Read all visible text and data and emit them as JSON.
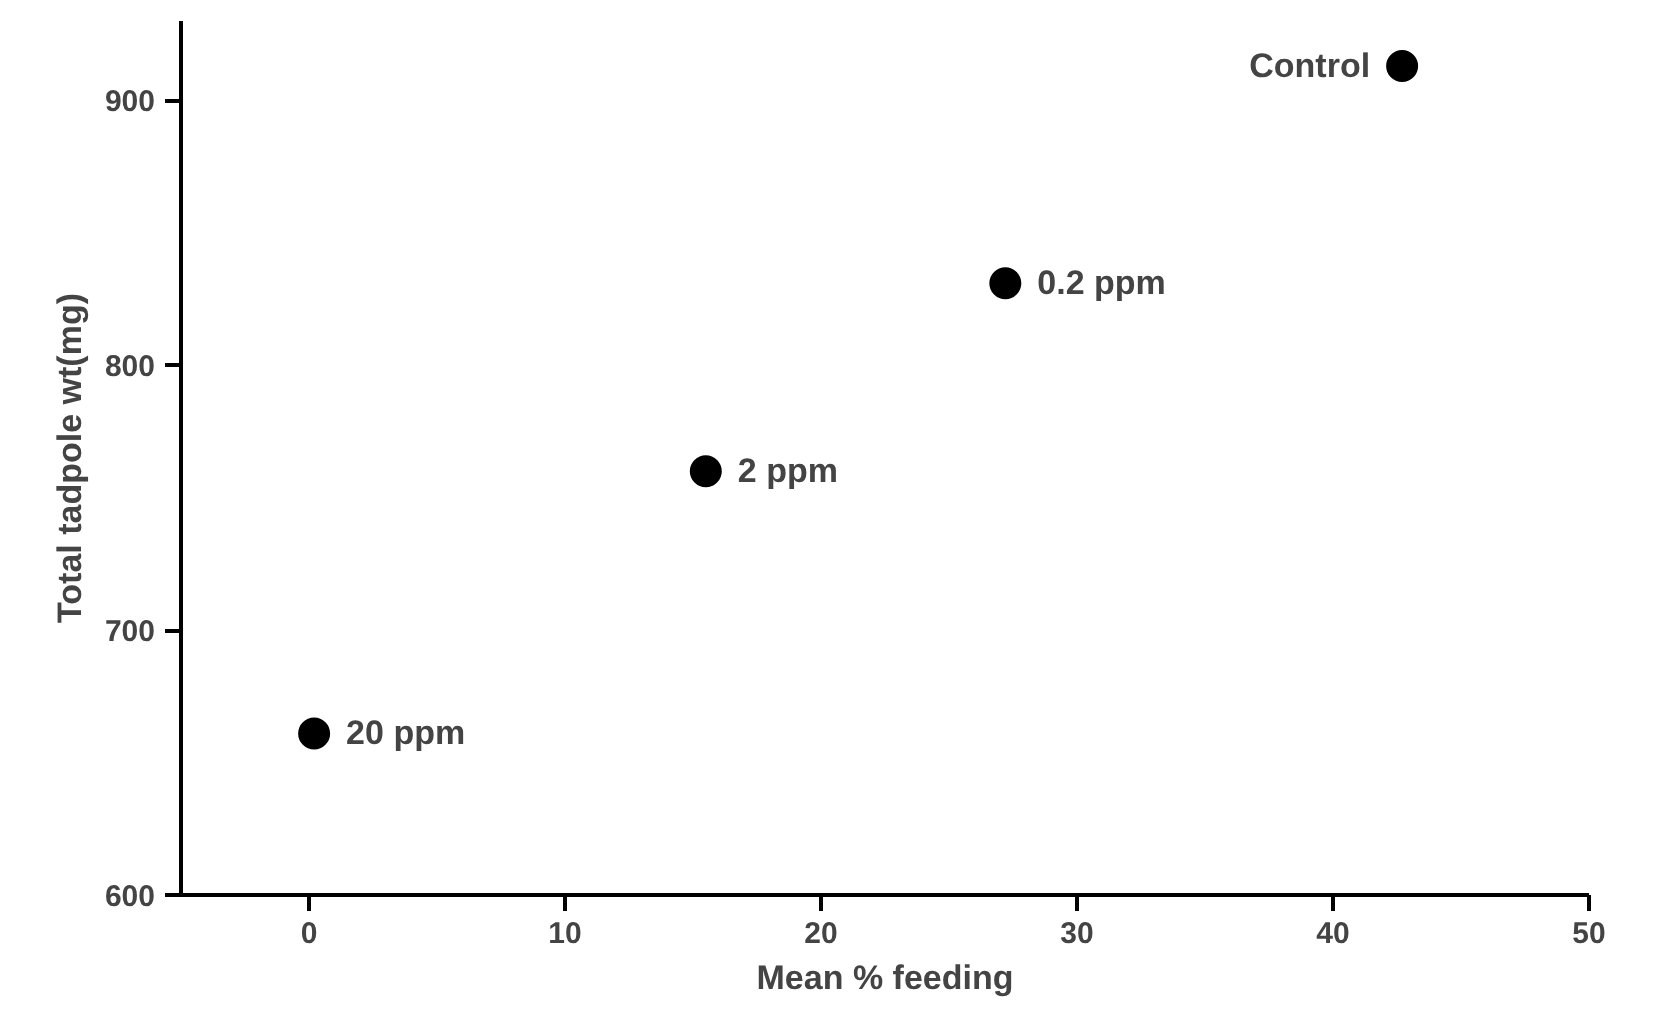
{
  "chart_data": {
    "type": "scatter",
    "xlabel": "Mean % feeding",
    "ylabel": "Total tadpole wt(mg)",
    "x": [
      0.2,
      15.5,
      27.2,
      42.7
    ],
    "series": [
      {
        "color": "#000000",
        "values": [
          661,
          760,
          831,
          913
        ]
      }
    ],
    "annotations": [
      {
        "text": "20 ppm",
        "x": 0.2,
        "y": 661
      },
      {
        "text": "2 ppm",
        "x": 15.5,
        "y": 760
      },
      {
        "text": "0.2 ppm",
        "x": 27.2,
        "y": 831
      },
      {
        "text": "Control",
        "x": 42.7,
        "y": 913
      }
    ],
    "xlim": [
      -5,
      50
    ],
    "ylim": [
      600,
      930
    ],
    "xticks": [
      0,
      10,
      20,
      30,
      40,
      50
    ],
    "yticks": [
      600,
      700,
      800,
      900
    ],
    "grid": false,
    "marker": "circle"
  }
}
